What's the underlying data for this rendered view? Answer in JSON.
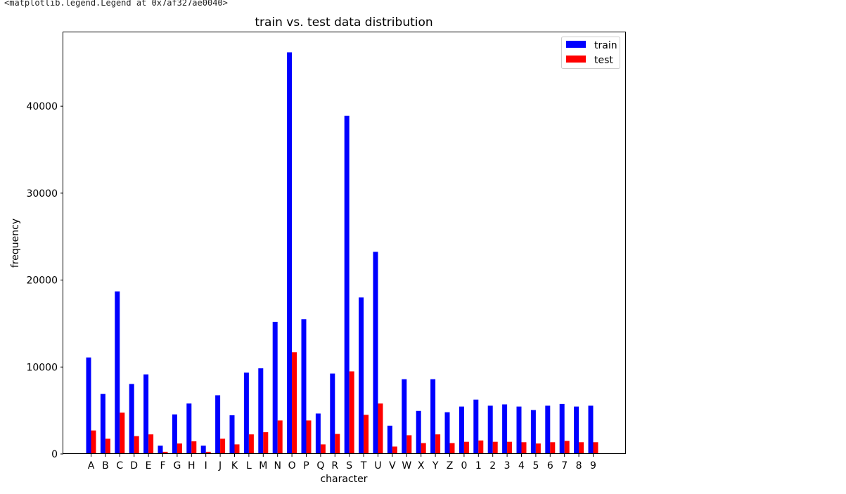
{
  "output_text": "<matplotlib.legend.Legend at 0x7af327ae0040>",
  "chart_data": {
    "type": "bar",
    "title": "train vs. test data distribution",
    "xlabel": "character",
    "ylabel": "frequency",
    "ylim": [
      0,
      48500
    ],
    "yticks": [
      0,
      10000,
      20000,
      30000,
      40000
    ],
    "grid": false,
    "legend_position": "top-right",
    "categories": [
      "A",
      "B",
      "C",
      "D",
      "E",
      "F",
      "G",
      "H",
      "I",
      "J",
      "K",
      "L",
      "M",
      "N",
      "O",
      "P",
      "Q",
      "R",
      "S",
      "T",
      "U",
      "V",
      "W",
      "X",
      "Y",
      "Z",
      "0",
      "1",
      "2",
      "3",
      "4",
      "5",
      "6",
      "7",
      "8",
      "9"
    ],
    "series": [
      {
        "name": "train",
        "color": "#0000ff",
        "values": [
          11100,
          6900,
          18700,
          8050,
          9150,
          950,
          4550,
          5800,
          950,
          6750,
          4450,
          9350,
          9850,
          15200,
          46200,
          15500,
          4650,
          9250,
          38900,
          18000,
          23250,
          3250,
          8600,
          4950,
          8600,
          4800,
          5450,
          6250,
          5550,
          5700,
          5450,
          5050,
          5550,
          5750,
          5450,
          5550
        ]
      },
      {
        "name": "test",
        "color": "#ff0000",
        "values": [
          2700,
          1750,
          4750,
          2050,
          2250,
          250,
          1200,
          1450,
          250,
          1750,
          1100,
          2250,
          2500,
          3850,
          11700,
          3850,
          1100,
          2300,
          9500,
          4500,
          5800,
          850,
          2150,
          1250,
          2250,
          1250,
          1400,
          1550,
          1400,
          1400,
          1350,
          1200,
          1350,
          1500,
          1350,
          1350
        ]
      }
    ]
  }
}
